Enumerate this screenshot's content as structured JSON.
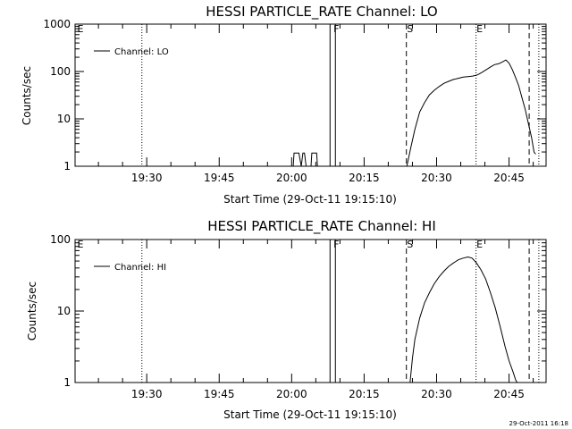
{
  "footer": {
    "timestamp": "29-Oct-2011 16:18"
  },
  "chart_data": [
    {
      "type": "line",
      "title": "HESSI PARTICLE_RATE Channel: LO",
      "xlabel": "Start Time (29-Oct-11 19:15:10)",
      "ylabel": "Counts/sec",
      "y_scale": "log",
      "xlim": [
        "19:15:10",
        "20:52:40"
      ],
      "ylim": [
        1,
        1000
      ],
      "x_ticks": [
        "19:30",
        "19:45",
        "20:00",
        "20:15",
        "20:30",
        "20:45"
      ],
      "y_ticks": [
        "1",
        "10",
        "100",
        "1000"
      ],
      "legend": {
        "position": "top-left",
        "entries": [
          "Channel: LO"
        ]
      },
      "grid": false,
      "markers": [
        {
          "label": "E",
          "time": "19:15:10",
          "style": "none"
        },
        {
          "label": "",
          "time": "19:29:00",
          "style": "dotted"
        },
        {
          "label": "F",
          "time": "20:08:30",
          "style": "solid-box"
        },
        {
          "label": "S",
          "time": "20:23:45",
          "style": "dashed"
        },
        {
          "label": "E",
          "time": "20:38:10",
          "style": "dotted"
        },
        {
          "label": "",
          "time": "20:49:10",
          "style": "dashed"
        },
        {
          "label": "",
          "time": "20:51:10",
          "style": "dotted"
        }
      ],
      "series": [
        {
          "name": "Channel: LO",
          "x": [
            "20:00:20",
            "20:00:30",
            "20:01:30",
            "20:02:00",
            "20:02:20",
            "20:02:40",
            "20:03:00",
            "20:04:00",
            "20:04:10",
            "20:05:10",
            "20:05:20",
            "20:06:00",
            "20:23:50",
            "20:24:40",
            "20:25:30",
            "20:26:30",
            "20:27:30",
            "20:28:30",
            "20:29:30",
            "20:30:30",
            "20:31:30",
            "20:32:30",
            "20:33:30",
            "20:34:30",
            "20:35:30",
            "20:36:30",
            "20:37:30",
            "20:38:30",
            "20:39:20",
            "20:40:20",
            "20:41:10",
            "20:42:00",
            "20:42:50",
            "20:43:40",
            "20:44:20",
            "20:45:00",
            "20:45:40",
            "20:46:20",
            "20:47:00",
            "20:47:40",
            "20:48:20",
            "20:49:00",
            "20:49:40",
            "20:50:10",
            "20:50:30"
          ],
          "y": [
            1,
            1.9,
            1.9,
            1,
            1.9,
            1.9,
            1,
            1,
            1.9,
            1.9,
            1,
            1,
            1,
            2.5,
            6,
            14,
            22,
            32,
            40,
            48,
            56,
            62,
            68,
            72,
            76,
            78,
            80,
            85,
            95,
            110,
            125,
            140,
            145,
            160,
            175,
            150,
            110,
            75,
            50,
            28,
            16,
            8,
            4,
            2,
            1.8
          ]
        }
      ]
    },
    {
      "type": "line",
      "title": "HESSI PARTICLE_RATE Channel: HI",
      "xlabel": "Start Time (29-Oct-11 19:15:10)",
      "ylabel": "Counts/sec",
      "y_scale": "log",
      "xlim": [
        "19:15:10",
        "20:52:40"
      ],
      "ylim": [
        1,
        100
      ],
      "x_ticks": [
        "19:30",
        "19:45",
        "20:00",
        "20:15",
        "20:30",
        "20:45"
      ],
      "y_ticks": [
        "1",
        "10",
        "100"
      ],
      "legend": {
        "position": "top-left",
        "entries": [
          "Channel: HI"
        ]
      },
      "grid": false,
      "markers": [
        {
          "label": "E",
          "time": "19:15:10",
          "style": "none"
        },
        {
          "label": "",
          "time": "19:29:00",
          "style": "dotted"
        },
        {
          "label": "F",
          "time": "20:08:30",
          "style": "solid-box"
        },
        {
          "label": "S",
          "time": "20:23:45",
          "style": "dashed"
        },
        {
          "label": "E",
          "time": "20:38:10",
          "style": "dotted"
        },
        {
          "label": "",
          "time": "20:49:10",
          "style": "dashed"
        },
        {
          "label": "",
          "time": "20:51:10",
          "style": "dotted"
        }
      ],
      "series": [
        {
          "name": "Channel: HI",
          "x": [
            "20:24:30",
            "20:25:00",
            "20:25:30",
            "20:26:30",
            "20:27:30",
            "20:28:30",
            "20:29:30",
            "20:30:30",
            "20:31:30",
            "20:32:30",
            "20:33:30",
            "20:34:30",
            "20:35:30",
            "20:36:30",
            "20:37:20",
            "20:38:10",
            "20:39:10",
            "20:40:10",
            "20:41:10",
            "20:42:10",
            "20:43:10",
            "20:44:10",
            "20:45:00",
            "20:45:50",
            "20:46:20",
            "20:46:40"
          ],
          "y": [
            1,
            2.2,
            4,
            8,
            13,
            18,
            24,
            30,
            36,
            42,
            47,
            52,
            55,
            57,
            55,
            48,
            38,
            28,
            18,
            11,
            6,
            3.2,
            2,
            1.4,
            1.1,
            1
          ]
        }
      ]
    }
  ]
}
